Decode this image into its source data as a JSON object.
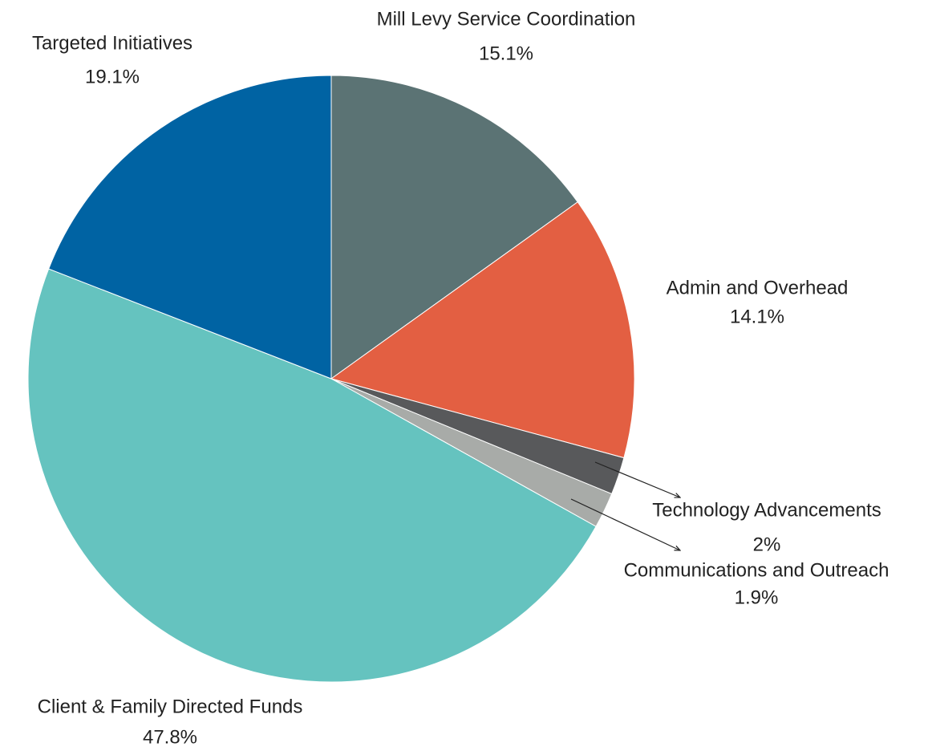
{
  "chart_data": {
    "type": "pie",
    "categories": [
      "Mill Levy Service Coordination",
      "Admin and Overhead",
      "Technology Advancements",
      "Communications and Outreach",
      "Client & Family Directed Funds",
      "Targeted Initiatives"
    ],
    "values": [
      15.1,
      14.1,
      2,
      1.9,
      47.8,
      19.1
    ],
    "value_labels": [
      "15.1%",
      "14.1%",
      "2%",
      "1.9%",
      "47.8%",
      "19.1%"
    ],
    "colors": [
      "#5b7374",
      "#e35f42",
      "#58595b",
      "#a8aba8",
      "#65c3bf",
      "#0063a3"
    ]
  }
}
